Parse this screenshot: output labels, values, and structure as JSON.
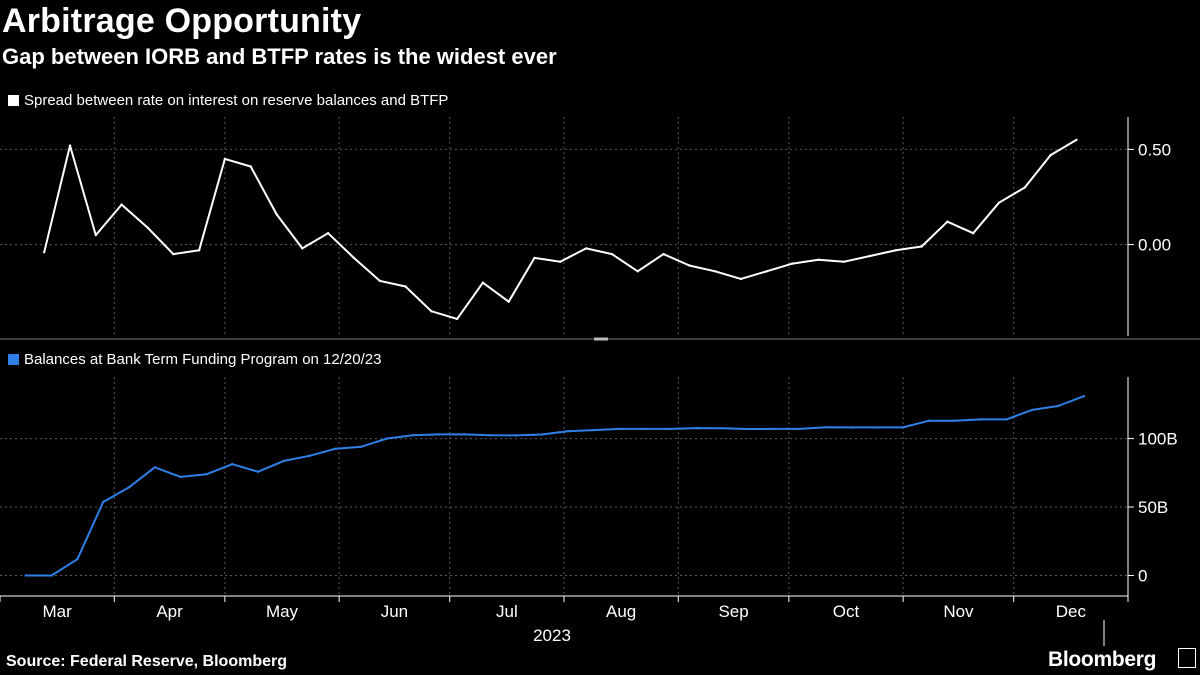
{
  "header": {
    "title": "Arbitrage Opportunity",
    "subtitle": "Gap between IORB and BTFP rates is the widest ever"
  },
  "footer": {
    "source": "Source: Federal Reserve, Bloomberg",
    "brand": "Bloomberg"
  },
  "colors": {
    "background": "#000000",
    "spread_line": "#ffffff",
    "balances_line": "#2f7fe6",
    "grid": "#5a5a5a"
  },
  "chart_data": [
    {
      "type": "line",
      "title": "",
      "series": [
        {
          "name": "Spread between rate on interest on reserve balances and BTFP",
          "x": [
            "2023-03-13",
            "2023-03-20",
            "2023-03-27",
            "2023-04-03",
            "2023-04-10",
            "2023-04-17",
            "2023-04-24",
            "2023-05-01",
            "2023-05-08",
            "2023-05-15",
            "2023-05-22",
            "2023-05-29",
            "2023-06-05",
            "2023-06-12",
            "2023-06-19",
            "2023-06-26",
            "2023-07-03",
            "2023-07-10",
            "2023-07-17",
            "2023-07-24",
            "2023-07-31",
            "2023-08-07",
            "2023-08-14",
            "2023-08-21",
            "2023-08-28",
            "2023-09-04",
            "2023-09-11",
            "2023-09-18",
            "2023-09-25",
            "2023-10-02",
            "2023-10-09",
            "2023-10-16",
            "2023-10-23",
            "2023-10-30",
            "2023-11-06",
            "2023-11-13",
            "2023-11-20",
            "2023-11-27",
            "2023-12-04",
            "2023-12-11",
            "2023-12-18"
          ],
          "values": [
            -0.04,
            0.52,
            0.05,
            0.21,
            0.09,
            -0.05,
            -0.03,
            0.45,
            0.41,
            0.16,
            -0.02,
            0.06,
            -0.07,
            -0.19,
            -0.22,
            -0.35,
            -0.39,
            -0.2,
            -0.3,
            -0.07,
            -0.09,
            -0.02,
            -0.05,
            -0.14,
            -0.05,
            -0.11,
            -0.14,
            -0.18,
            -0.14,
            -0.1,
            -0.08,
            -0.09,
            -0.06,
            -0.03,
            -0.01,
            0.12,
            0.06,
            0.22,
            0.3,
            0.47,
            0.55
          ]
        }
      ],
      "y_ticks": [
        "0.50",
        "0.00"
      ],
      "ylim": [
        -0.48,
        0.67
      ],
      "x_ticks": [
        "Mar",
        "Apr",
        "May",
        "Jun",
        "Jul",
        "Aug",
        "Sep",
        "Oct",
        "Nov",
        "Dec"
      ],
      "grid": true,
      "legend": "top-left"
    },
    {
      "type": "line",
      "title": "",
      "series": [
        {
          "name": "Balances at Bank Term Funding Program on 12/20/23",
          "x": [
            "2023-03-08",
            "2023-03-15",
            "2023-03-22",
            "2023-03-29",
            "2023-04-05",
            "2023-04-12",
            "2023-04-19",
            "2023-04-26",
            "2023-05-03",
            "2023-05-10",
            "2023-05-17",
            "2023-05-24",
            "2023-05-31",
            "2023-06-07",
            "2023-06-14",
            "2023-06-21",
            "2023-06-28",
            "2023-07-05",
            "2023-07-12",
            "2023-07-19",
            "2023-07-26",
            "2023-08-02",
            "2023-08-09",
            "2023-08-16",
            "2023-08-23",
            "2023-08-30",
            "2023-09-06",
            "2023-09-13",
            "2023-09-20",
            "2023-09-27",
            "2023-10-04",
            "2023-10-11",
            "2023-10-18",
            "2023-10-25",
            "2023-11-01",
            "2023-11-08",
            "2023-11-15",
            "2023-11-22",
            "2023-11-29",
            "2023-12-06",
            "2023-12-13",
            "2023-12-20"
          ],
          "values": [
            0,
            0,
            11.9,
            53.7,
            64.4,
            79.0,
            72.0,
            73.9,
            81.3,
            75.8,
            83.7,
            87.4,
            92.6,
            94.1,
            100.1,
            102.5,
            103.1,
            103.1,
            102.4,
            102.3,
            103.0,
            105.4,
            106.2,
            107.1,
            107.1,
            107.1,
            107.7,
            107.6,
            107.0,
            107.1,
            107.1,
            108.3,
            108.2,
            108.2,
            108.2,
            113.1,
            113.1,
            114.0,
            114.0,
            121.0,
            123.8,
            131.0
          ],
          "unit": "B"
        }
      ],
      "y_ticks": [
        "100B",
        "50B",
        "0"
      ],
      "ylim": [
        -15,
        145
      ],
      "x_ticks": [
        "Mar",
        "Apr",
        "May",
        "Jun",
        "Jul",
        "Aug",
        "Sep",
        "Oct",
        "Nov",
        "Dec"
      ],
      "x_year_label": "2023",
      "grid": true,
      "legend": "top-left"
    }
  ]
}
